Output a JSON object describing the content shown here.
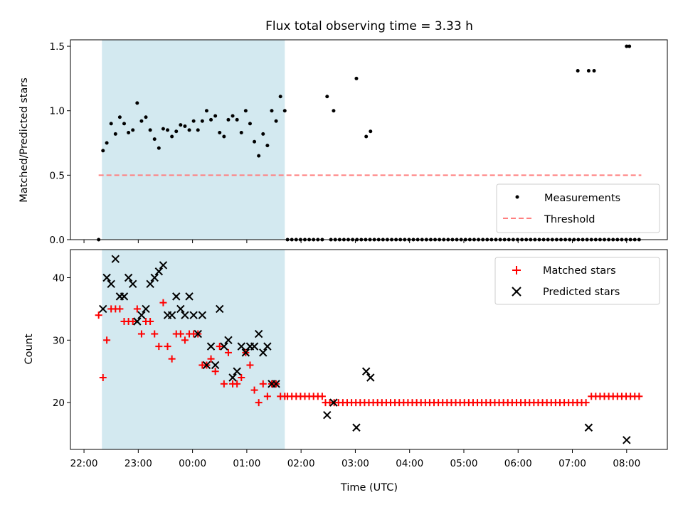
{
  "chart_data": [
    {
      "type": "scatter",
      "title": "Flux total observing time = 3.33 h",
      "xlabel": "",
      "ylabel": "Matched/Predicted stars",
      "xlim": [
        -0.25,
        10.75
      ],
      "ylim": [
        0,
        1.55
      ],
      "yticks": [
        0.0,
        0.5,
        1.0,
        1.5
      ],
      "ytick_labels": [
        "0.0",
        "0.5",
        "1.0",
        "1.5"
      ],
      "shaded_span": [
        0.33,
        3.7
      ],
      "shade_color": "#d3e9f0",
      "legend_position": "lower-right",
      "legend": [
        {
          "label": "Measurements",
          "marker": "dot",
          "color": "#000000"
        },
        {
          "label": "Threshold",
          "marker": "dashed-line",
          "color": "#ff7f7f"
        }
      ],
      "threshold": {
        "value": 0.5,
        "x_range": [
          0.27,
          10.27
        ],
        "color": "#ff7f7f"
      },
      "series": [
        {
          "name": "Measurements",
          "color": "#000000",
          "x": [
            0.27,
            0.35,
            0.42,
            0.5,
            0.58,
            0.66,
            0.74,
            0.82,
            0.9,
            0.98,
            1.06,
            1.14,
            1.22,
            1.3,
            1.38,
            1.46,
            1.54,
            1.62,
            1.7,
            1.78,
            1.86,
            1.94,
            2.02,
            2.1,
            2.18,
            2.26,
            2.34,
            2.42,
            2.5,
            2.58,
            2.66,
            2.74,
            2.82,
            2.9,
            2.98,
            3.06,
            3.14,
            3.22,
            3.3,
            3.38,
            3.46,
            3.54,
            3.62,
            3.7,
            4.48,
            4.6,
            5.02,
            5.2,
            5.28,
            10.05,
            10.0,
            9.4,
            9.3,
            9.1
          ],
          "y": [
            0.0,
            0.69,
            0.75,
            0.9,
            0.82,
            0.95,
            0.9,
            0.83,
            0.85,
            1.06,
            0.92,
            0.95,
            0.85,
            0.78,
            0.71,
            0.86,
            0.85,
            0.8,
            0.84,
            0.89,
            0.88,
            0.85,
            0.92,
            0.85,
            0.92,
            1.0,
            0.93,
            0.96,
            0.83,
            0.8,
            0.93,
            0.96,
            0.93,
            0.83,
            1.0,
            0.9,
            0.76,
            0.65,
            0.82,
            0.73,
            1.0,
            0.92,
            1.11,
            1.0,
            1.11,
            1.0,
            1.25,
            0.8,
            0.84,
            1.5,
            1.5,
            1.31,
            1.31,
            1.31
          ],
          "zero_points_range": [
            3.75,
            10.3
          ]
        }
      ]
    },
    {
      "type": "scatter",
      "title": "",
      "xlabel": "Time (UTC)",
      "ylabel": "Count",
      "xlim": [
        -0.25,
        10.75
      ],
      "ylim": [
        12.5,
        44.5
      ],
      "yticks": [
        20,
        30,
        40
      ],
      "ytick_labels": [
        "20",
        "30",
        "40"
      ],
      "xticks": [
        0,
        1,
        2,
        3,
        4,
        5,
        6,
        7,
        8,
        9,
        10
      ],
      "xtick_labels": [
        "22:00",
        "23:00",
        "00:00",
        "01:00",
        "02:00",
        "03:00",
        "04:00",
        "05:00",
        "06:00",
        "07:00",
        "08:00"
      ],
      "shaded_span": [
        0.33,
        3.7
      ],
      "legend_position": "upper-right",
      "legend": [
        {
          "label": "Matched stars",
          "marker": "plus",
          "color": "#ff0000"
        },
        {
          "label": "Predicted stars",
          "marker": "x",
          "color": "#000000"
        }
      ],
      "series": [
        {
          "name": "Matched stars",
          "color": "#ff0000",
          "x": [
            0.27,
            0.35,
            0.42,
            0.5,
            0.58,
            0.66,
            0.74,
            0.82,
            0.9,
            0.98,
            1.06,
            1.14,
            1.22,
            1.3,
            1.38,
            1.46,
            1.54,
            1.62,
            1.7,
            1.78,
            1.86,
            1.94,
            2.02,
            2.1,
            2.18,
            2.26,
            2.34,
            2.42,
            2.5,
            2.58,
            2.66,
            2.74,
            2.82,
            2.9,
            2.98,
            3.06,
            3.14,
            3.22,
            3.3,
            3.38,
            3.46,
            3.54,
            3.62,
            3.7
          ],
          "y": [
            34,
            24,
            30,
            35,
            35,
            35,
            33,
            33,
            33,
            35,
            31,
            33,
            33,
            31,
            29,
            36,
            29,
            27,
            31,
            31,
            30,
            31,
            31,
            31,
            26,
            26,
            27,
            25,
            29,
            23,
            28,
            23,
            23,
            24,
            28,
            26,
            22,
            20,
            23,
            21,
            23,
            23,
            21,
            21
          ],
          "flat_runs": [
            {
              "value": 21,
              "x_range": [
                3.75,
                4.4
              ]
            },
            {
              "value": 20,
              "x_range": [
                4.45,
                9.3
              ]
            },
            {
              "value": 21,
              "x_range": [
                9.35,
                10.3
              ]
            }
          ]
        },
        {
          "name": "Predicted stars",
          "color": "#000000",
          "x": [
            0.35,
            0.42,
            0.5,
            0.58,
            0.66,
            0.74,
            0.82,
            0.9,
            0.98,
            1.06,
            1.14,
            1.22,
            1.3,
            1.38,
            1.46,
            1.54,
            1.62,
            1.7,
            1.78,
            1.86,
            1.94,
            2.02,
            2.1,
            2.18,
            2.26,
            2.34,
            2.42,
            2.5,
            2.58,
            2.66,
            2.74,
            2.82,
            2.9,
            2.98,
            3.06,
            3.14,
            3.22,
            3.3,
            3.38,
            3.46,
            3.54,
            4.48,
            4.6,
            5.02,
            5.2,
            5.28,
            9.3,
            10.0
          ],
          "y": [
            35,
            40,
            39,
            43,
            37,
            37,
            40,
            39,
            33,
            34,
            35,
            39,
            40,
            41,
            42,
            34,
            34,
            37,
            35,
            34,
            37,
            34,
            31,
            34,
            26,
            29,
            26,
            35,
            29,
            30,
            24,
            25,
            29,
            28,
            29,
            29,
            31,
            28,
            29,
            23,
            23,
            18,
            20,
            16,
            25,
            24,
            16,
            14
          ]
        }
      ]
    }
  ]
}
